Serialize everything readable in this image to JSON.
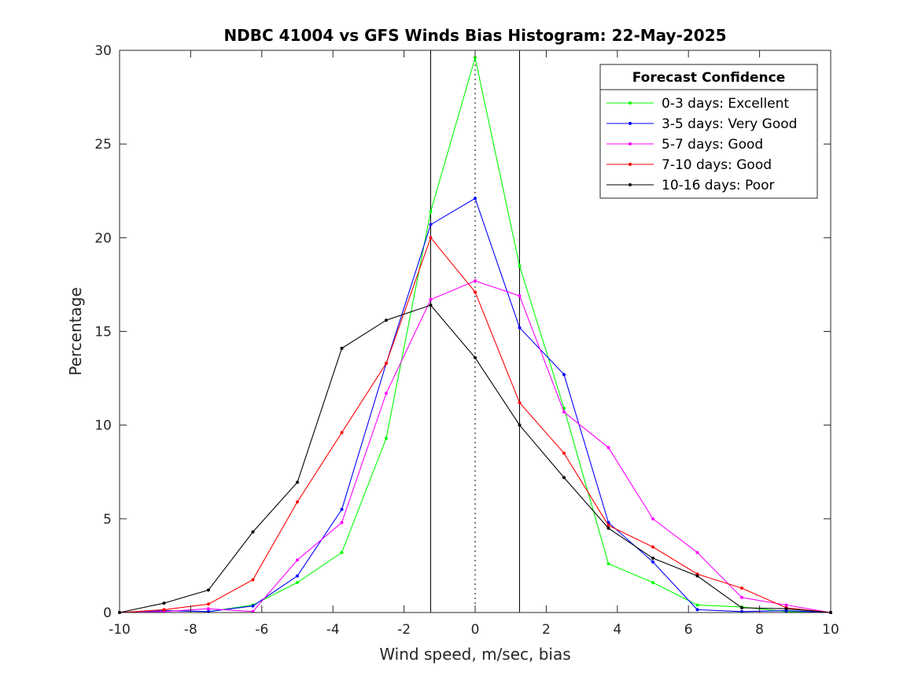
{
  "chart_data": {
    "type": "line",
    "title": "NDBC 41004 vs GFS Winds Bias Histogram: 22-May-2025",
    "xlabel": "Wind speed, m/sec, bias",
    "ylabel": "Percentage",
    "xlim": [
      -10,
      10
    ],
    "ylim": [
      0,
      30
    ],
    "xticks": [
      -10,
      -8,
      -6,
      -4,
      -2,
      0,
      2,
      4,
      6,
      8,
      10
    ],
    "yticks": [
      0,
      5,
      10,
      15,
      20,
      25,
      30
    ],
    "grid": false,
    "x": [
      -10,
      -8.75,
      -7.5,
      -6.25,
      -5,
      -3.75,
      -2.5,
      -1.25,
      0,
      1.25,
      2.5,
      3.75,
      5,
      6.25,
      7.5,
      8.75,
      10
    ],
    "reference_lines": {
      "solid_x": [
        -1.25,
        1.25
      ],
      "dotted_x": [
        0
      ]
    },
    "legend": {
      "title": "Forecast Confidence",
      "position": "top-right"
    },
    "series": [
      {
        "name": "0-3 days: Excellent",
        "color": "#00ff00",
        "values": [
          0,
          0.1,
          0.05,
          0.4,
          1.6,
          3.2,
          9.3,
          21.4,
          29.6,
          18.5,
          10.9,
          2.6,
          1.6,
          0.4,
          0.3,
          0.05,
          0
        ]
      },
      {
        "name": "3-5 days: Very Good",
        "color": "#0000ff",
        "values": [
          0,
          0.1,
          0.05,
          0.35,
          1.95,
          5.5,
          13.3,
          20.7,
          22.1,
          15.2,
          12.7,
          4.8,
          2.7,
          0.15,
          0.05,
          0.1,
          0
        ]
      },
      {
        "name": "5-7 days: Good",
        "color": "#ff00ff",
        "values": [
          0,
          0.05,
          0.2,
          0.05,
          2.8,
          4.8,
          11.7,
          16.7,
          17.7,
          16.9,
          10.7,
          8.8,
          5.0,
          3.2,
          0.8,
          0.4,
          0
        ]
      },
      {
        "name": "7-10 days: Good",
        "color": "#ff0000",
        "values": [
          0,
          0.15,
          0.45,
          1.75,
          5.9,
          9.6,
          13.3,
          20.0,
          17.1,
          11.2,
          8.5,
          4.65,
          3.5,
          2.05,
          1.3,
          0.25,
          0
        ]
      },
      {
        "name": "10-16 days: Poor",
        "color": "#000000",
        "values": [
          0,
          0.5,
          1.2,
          4.3,
          6.95,
          14.1,
          15.6,
          16.4,
          13.6,
          10.0,
          7.2,
          4.5,
          2.9,
          1.95,
          0.25,
          0.2,
          0
        ]
      }
    ]
  }
}
